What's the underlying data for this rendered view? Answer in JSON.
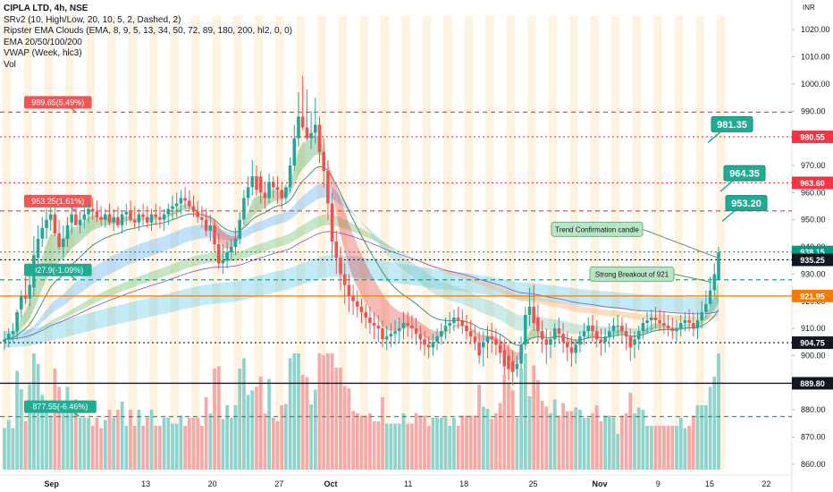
{
  "legend": {
    "title": "CIPLA LTD, 4h, NSE",
    "indicators": [
      "SRv2 (10, High/Low, 20, 10, 5, 2, Dashed, 2)",
      "Ripster EMA Clouds (EMA, 8, 9, 5, 13, 34, 50, 72, 89, 180, 200, hl2, 0, 0)",
      "EMA 20/50/100/200",
      "VWAP (Week, hlc3)",
      "Vol"
    ]
  },
  "colors": {
    "bull": "#26a69a",
    "bear": "#ef5350",
    "bull_volume": "#8fd3cc",
    "bear_volume": "#f7a9a7",
    "resistance": "#f23645",
    "support": "#089981",
    "support_label": "#22ab94",
    "current_price": "#089981",
    "breakout_level": "#f57c00",
    "black_level": "#131722",
    "sessions": "#fde9c8"
  },
  "chart_data": {
    "type": "candlestick",
    "currency": "INR",
    "ylim": [
      858,
      1025
    ],
    "y_ticks": [
      860,
      870,
      880,
      890,
      900,
      910,
      920,
      930,
      940,
      950,
      960,
      970,
      980,
      990,
      1000,
      1010,
      1020
    ],
    "x_labels": [
      "Sep",
      "13",
      "20",
      "27",
      "Oct",
      "11",
      "18",
      "25",
      "Nov",
      "9",
      "15",
      "22"
    ],
    "horizontal_levels": [
      {
        "value": 989.65,
        "color": "resistance",
        "style": "dashed",
        "axis_label": "",
        "box_label": "989.65(5.49%)"
      },
      {
        "value": 980.55,
        "color": "resistance",
        "style": "dotted",
        "axis_label": "980.55",
        "box_label": ""
      },
      {
        "value": 963.6,
        "color": "resistance",
        "style": "dotted",
        "axis_label": "963.60",
        "box_label": ""
      },
      {
        "value": 953.25,
        "color": "resistance",
        "style": "dashed",
        "axis_label": "",
        "box_label": "953.25(1.61%)"
      },
      {
        "value": 938.15,
        "color": "current_price",
        "style": "dotted",
        "axis_label": "938.15",
        "box_label": ""
      },
      {
        "value": 935.25,
        "color": "black_level",
        "style": "dotted",
        "axis_label": "935.25",
        "box_label": ""
      },
      {
        "value": 927.9,
        "color": "support",
        "style": "dashed",
        "axis_label": "",
        "box_label": "927.9(-1.09%)"
      },
      {
        "value": 921.95,
        "color": "breakout_level",
        "style": "solid",
        "axis_label": "921.95",
        "box_label": ""
      },
      {
        "value": 904.75,
        "color": "black_level",
        "style": "dotted",
        "axis_label": "904.75",
        "box_label": ""
      },
      {
        "value": 889.8,
        "color": "black_level",
        "style": "solid",
        "axis_label": "889.80",
        "box_label": ""
      },
      {
        "value": 877.55,
        "color": "support",
        "style": "dashed",
        "axis_label": "",
        "box_label": "877.55(-6.46%)"
      }
    ],
    "target_labels": [
      "981.35",
      "964.35",
      "953.20"
    ],
    "annotations": [
      "Trend Confirmation candle",
      "Strong Breakout of 921"
    ],
    "candles": {
      "open": [
        905,
        906,
        908,
        909,
        917,
        922,
        921,
        925,
        936,
        943,
        947,
        950,
        952,
        945,
        940,
        943,
        949,
        952,
        948,
        950,
        952,
        954,
        953,
        951,
        950,
        952,
        949,
        951,
        948,
        952,
        953,
        950,
        949,
        952,
        951,
        949,
        952,
        951,
        950,
        952,
        954,
        955,
        956,
        958,
        957,
        955,
        953,
        951,
        950,
        946,
        948,
        941,
        934,
        935,
        938,
        940,
        943,
        950,
        958,
        962,
        966,
        966,
        960,
        958,
        964,
        962,
        961,
        958,
        962,
        970,
        980,
        988,
        984,
        980,
        982,
        985,
        975,
        968,
        956,
        942,
        936,
        930,
        926,
        922,
        920,
        918,
        916,
        914,
        912,
        911,
        910,
        906,
        907,
        908,
        909,
        910,
        912,
        911,
        910,
        908,
        906,
        904,
        903,
        905,
        907,
        909,
        911,
        912,
        914,
        913,
        911,
        909,
        907,
        905,
        903,
        905,
        907,
        906,
        904,
        902,
        900,
        898,
        895,
        897,
        904,
        915,
        918,
        914,
        909,
        906,
        904,
        906,
        910,
        908,
        905,
        903,
        901,
        904,
        907,
        909,
        911,
        909,
        906,
        905,
        907,
        909,
        911,
        911,
        909,
        907,
        904,
        906,
        909,
        912,
        913,
        914,
        913,
        912,
        911,
        910,
        909,
        910,
        912,
        913,
        912,
        910,
        913,
        916,
        919,
        924,
        928
      ],
      "high": [
        909,
        910,
        912,
        917,
        924,
        929,
        930,
        944,
        948,
        951,
        954,
        955,
        956,
        950,
        948,
        951,
        955,
        957,
        953,
        955,
        957,
        958,
        957,
        955,
        954,
        956,
        954,
        955,
        953,
        956,
        957,
        955,
        954,
        956,
        955,
        954,
        956,
        955,
        954,
        956,
        959,
        960,
        961,
        962,
        961,
        959,
        957,
        955,
        954,
        952,
        950,
        945,
        941,
        942,
        943,
        947,
        953,
        961,
        966,
        972,
        970,
        968,
        964,
        967,
        966,
        966,
        964,
        963,
        973,
        985,
        997,
        1003,
        998,
        990,
        995,
        988,
        980,
        972,
        960,
        946,
        940,
        934,
        930,
        926,
        924,
        921,
        919,
        918,
        916,
        915,
        913,
        911,
        912,
        913,
        914,
        916,
        916,
        915,
        914,
        911,
        909,
        907,
        908,
        910,
        912,
        914,
        916,
        917,
        918,
        917,
        915,
        913,
        911,
        909,
        909,
        911,
        912,
        910,
        908,
        906,
        904,
        902,
        900,
        907,
        918,
        925,
        926,
        919,
        913,
        910,
        909,
        912,
        914,
        912,
        909,
        907,
        906,
        909,
        912,
        914,
        915,
        913,
        910,
        910,
        912,
        914,
        915,
        914,
        912,
        910,
        909,
        911,
        914,
        916,
        917,
        918,
        917,
        916,
        915,
        914,
        913,
        915,
        916,
        917,
        916,
        916,
        920,
        924,
        929,
        934,
        940
      ],
      "low": [
        902,
        903,
        905,
        906,
        914,
        919,
        918,
        922,
        934,
        940,
        943,
        946,
        944,
        939,
        936,
        940,
        945,
        948,
        945,
        947,
        949,
        950,
        949,
        948,
        947,
        948,
        946,
        947,
        945,
        948,
        949,
        947,
        946,
        948,
        947,
        946,
        948,
        947,
        946,
        948,
        950,
        951,
        952,
        954,
        953,
        951,
        949,
        947,
        944,
        942,
        938,
        932,
        930,
        932,
        935,
        937,
        941,
        948,
        955,
        959,
        959,
        956,
        954,
        956,
        958,
        956,
        954,
        956,
        960,
        968,
        977,
        983,
        979,
        976,
        978,
        971,
        962,
        950,
        936,
        930,
        924,
        919,
        916,
        915,
        914,
        912,
        910,
        908,
        906,
        905,
        903,
        902,
        903,
        904,
        905,
        906,
        907,
        906,
        904,
        902,
        900,
        899,
        900,
        902,
        904,
        906,
        908,
        909,
        910,
        908,
        906,
        904,
        902,
        897,
        896,
        899,
        901,
        900,
        897,
        893,
        891,
        889,
        892,
        895,
        902,
        911,
        909,
        905,
        901,
        897,
        899,
        903,
        905,
        901,
        898,
        896,
        897,
        901,
        904,
        906,
        905,
        903,
        900,
        901,
        903,
        906,
        907,
        905,
        902,
        898,
        899,
        902,
        906,
        908,
        909,
        910,
        909,
        908,
        907,
        906,
        905,
        907,
        909,
        909,
        907,
        906,
        910,
        914,
        918,
        922,
        928
      ],
      "close": [
        906,
        908,
        909,
        916,
        922,
        921,
        926,
        937,
        943,
        947,
        950,
        952,
        945,
        940,
        943,
        948,
        952,
        948,
        950,
        952,
        954,
        953,
        951,
        950,
        952,
        949,
        951,
        948,
        952,
        953,
        950,
        949,
        952,
        951,
        949,
        952,
        951,
        950,
        952,
        954,
        955,
        956,
        958,
        957,
        955,
        953,
        951,
        950,
        946,
        948,
        941,
        934,
        935,
        938,
        940,
        943,
        950,
        958,
        962,
        966,
        961,
        960,
        958,
        964,
        962,
        961,
        958,
        962,
        970,
        980,
        988,
        984,
        980,
        982,
        985,
        975,
        968,
        956,
        942,
        936,
        930,
        926,
        922,
        920,
        918,
        916,
        914,
        912,
        911,
        910,
        906,
        907,
        908,
        909,
        910,
        912,
        911,
        910,
        908,
        906,
        904,
        903,
        905,
        907,
        909,
        911,
        912,
        914,
        913,
        911,
        909,
        907,
        905,
        900,
        905,
        907,
        906,
        904,
        901,
        896,
        895,
        894,
        897,
        904,
        915,
        918,
        912,
        909,
        906,
        904,
        906,
        910,
        908,
        905,
        903,
        901,
        904,
        907,
        909,
        911,
        909,
        906,
        905,
        907,
        909,
        911,
        911,
        909,
        907,
        903,
        906,
        909,
        912,
        913,
        914,
        913,
        912,
        911,
        910,
        909,
        910,
        912,
        913,
        912,
        910,
        913,
        916,
        919,
        924,
        930,
        938
      ]
    }
  }
}
